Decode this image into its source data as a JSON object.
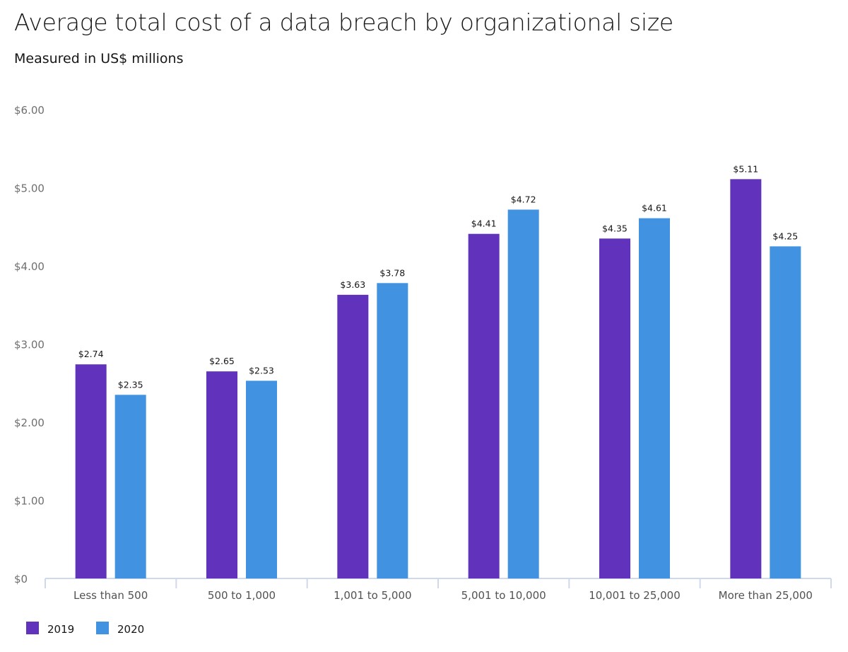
{
  "chart_data": {
    "type": "bar",
    "title": "Average total cost of a data breach by organizational size",
    "subtitle": "Measured in US$ millions",
    "categories": [
      "Less than 500",
      "500 to 1,000",
      "1,001 to 5,000",
      "5,001 to 10,000",
      "10,001 to 25,000",
      "More than 25,000"
    ],
    "series": [
      {
        "name": "2019",
        "color": "#6133bd",
        "values": [
          2.74,
          2.65,
          3.63,
          4.41,
          4.35,
          5.11
        ],
        "labels": [
          "$2.74",
          "$2.65",
          "$3.63",
          "$4.41",
          "$4.35",
          "$5.11"
        ]
      },
      {
        "name": "2020",
        "color": "#4192e0",
        "values": [
          2.35,
          2.53,
          3.78,
          4.72,
          4.61,
          4.25
        ],
        "labels": [
          "$2.35",
          "$2.53",
          "$3.78",
          "$4.72",
          "$4.61",
          "$4.25"
        ]
      }
    ],
    "ylim": [
      0,
      6
    ],
    "yticks": [
      0,
      1,
      2,
      3,
      4,
      5,
      6
    ],
    "ytick_labels": [
      "$0",
      "$1.00",
      "$2.00",
      "$3.00",
      "$4.00",
      "$5.00",
      "$6.00"
    ],
    "xlabel": "",
    "ylabel": "",
    "grid": false,
    "legend": "bottom-left"
  }
}
